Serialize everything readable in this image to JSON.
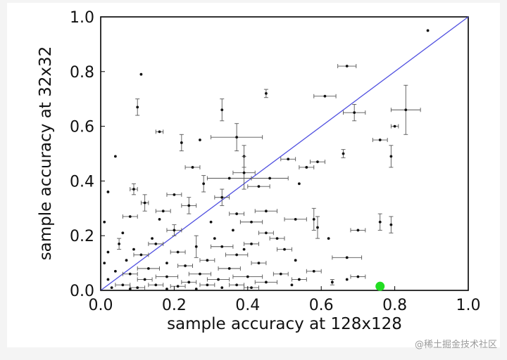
{
  "chart_data": {
    "type": "scatter",
    "xlabel": "sample accuracy at 128x128",
    "ylabel": "sample accuracy at 32x32",
    "xlim": [
      0.0,
      1.0
    ],
    "ylim": [
      0.0,
      1.0
    ],
    "xticks": [
      "0.0",
      "0.2",
      "0.4",
      "0.6",
      "0.8",
      "1.0"
    ],
    "yticks": [
      "0.0",
      "0.2",
      "0.4",
      "0.6",
      "0.8",
      "1.0"
    ],
    "grid": false,
    "reference_line": {
      "from": [
        0,
        0
      ],
      "to": [
        1,
        1
      ],
      "color": "#5050e0"
    },
    "highlight": {
      "x": 0.76,
      "y": 0.015,
      "color": "#22dd22"
    },
    "points": [
      {
        "x": 0.89,
        "y": 0.95
      },
      {
        "x": 0.67,
        "y": 0.82,
        "ex": 0.025
      },
      {
        "x": 0.11,
        "y": 0.79
      },
      {
        "x": 0.45,
        "y": 0.72,
        "ey": 0.015
      },
      {
        "x": 0.61,
        "y": 0.71,
        "ex": 0.03
      },
      {
        "x": 0.1,
        "y": 0.67,
        "ey": 0.03
      },
      {
        "x": 0.83,
        "y": 0.66,
        "ex": 0.04,
        "ey": 0.09
      },
      {
        "x": 0.33,
        "y": 0.66,
        "ey": 0.04
      },
      {
        "x": 0.69,
        "y": 0.65,
        "ex": 0.03,
        "ey": 0.03
      },
      {
        "x": 0.8,
        "y": 0.6,
        "ex": 0.01
      },
      {
        "x": 0.16,
        "y": 0.58,
        "ex": 0.01
      },
      {
        "x": 0.37,
        "y": 0.56,
        "ex": 0.07,
        "ey": 0.05
      },
      {
        "x": 0.76,
        "y": 0.55,
        "ex": 0.02
      },
      {
        "x": 0.27,
        "y": 0.55
      },
      {
        "x": 0.22,
        "y": 0.54,
        "ey": 0.03
      },
      {
        "x": 0.66,
        "y": 0.5,
        "ey": 0.015
      },
      {
        "x": 0.39,
        "y": 0.49,
        "ey": 0.04
      },
      {
        "x": 0.79,
        "y": 0.49,
        "ey": 0.04
      },
      {
        "x": 0.51,
        "y": 0.48,
        "ex": 0.02
      },
      {
        "x": 0.04,
        "y": 0.49
      },
      {
        "x": 0.59,
        "y": 0.47,
        "ex": 0.02
      },
      {
        "x": 0.25,
        "y": 0.45,
        "ex": 0.02
      },
      {
        "x": 0.56,
        "y": 0.45,
        "ex": 0.02
      },
      {
        "x": 0.39,
        "y": 0.43,
        "ex": 0.03,
        "ey": 0.06
      },
      {
        "x": 0.35,
        "y": 0.41,
        "ex": 0.06
      },
      {
        "x": 0.46,
        "y": 0.41,
        "ex": 0.05
      },
      {
        "x": 0.28,
        "y": 0.39,
        "ey": 0.03
      },
      {
        "x": 0.43,
        "y": 0.38,
        "ex": 0.03
      },
      {
        "x": 0.54,
        "y": 0.39
      },
      {
        "x": 0.09,
        "y": 0.37,
        "ex": 0.01,
        "ey": 0.02
      },
      {
        "x": 0.02,
        "y": 0.36
      },
      {
        "x": 0.2,
        "y": 0.35,
        "ex": 0.02
      },
      {
        "x": 0.33,
        "y": 0.34,
        "ex": 0.02,
        "ey": 0.03
      },
      {
        "x": 0.12,
        "y": 0.32,
        "ex": 0.01,
        "ey": 0.03
      },
      {
        "x": 0.24,
        "y": 0.31,
        "ex": 0.02,
        "ey": 0.03
      },
      {
        "x": 0.45,
        "y": 0.29,
        "ex": 0.03
      },
      {
        "x": 0.37,
        "y": 0.28,
        "ex": 0.02
      },
      {
        "x": 0.17,
        "y": 0.29,
        "ex": 0.02
      },
      {
        "x": 0.08,
        "y": 0.27,
        "ex": 0.02
      },
      {
        "x": 0.76,
        "y": 0.25,
        "ey": 0.03
      },
      {
        "x": 0.79,
        "y": 0.24,
        "ey": 0.03
      },
      {
        "x": 0.58,
        "y": 0.26,
        "ey": 0.04
      },
      {
        "x": 0.53,
        "y": 0.26,
        "ex": 0.03
      },
      {
        "x": 0.41,
        "y": 0.25,
        "ex": 0.03
      },
      {
        "x": 0.3,
        "y": 0.25
      },
      {
        "x": 0.01,
        "y": 0.25
      },
      {
        "x": 0.7,
        "y": 0.22,
        "ex": 0.02
      },
      {
        "x": 0.59,
        "y": 0.23,
        "ey": 0.04
      },
      {
        "x": 0.45,
        "y": 0.21,
        "ex": 0.02
      },
      {
        "x": 0.36,
        "y": 0.22
      },
      {
        "x": 0.2,
        "y": 0.22,
        "ex": 0.02,
        "ey": 0.02
      },
      {
        "x": 0.48,
        "y": 0.19,
        "ex": 0.02
      },
      {
        "x": 0.62,
        "y": 0.19
      },
      {
        "x": 0.41,
        "y": 0.17,
        "ex": 0.02
      },
      {
        "x": 0.33,
        "y": 0.16,
        "ex": 0.03
      },
      {
        "x": 0.15,
        "y": 0.17,
        "ex": 0.02
      },
      {
        "x": 0.26,
        "y": 0.16,
        "ey": 0.04
      },
      {
        "x": 0.05,
        "y": 0.17,
        "ey": 0.02
      },
      {
        "x": 0.5,
        "y": 0.15,
        "ex": 0.02
      },
      {
        "x": 0.21,
        "y": 0.14,
        "ex": 0.02
      },
      {
        "x": 0.11,
        "y": 0.13,
        "ex": 0.02
      },
      {
        "x": 0.37,
        "y": 0.13,
        "ex": 0.03
      },
      {
        "x": 0.67,
        "y": 0.12,
        "ex": 0.04
      },
      {
        "x": 0.53,
        "y": 0.11
      },
      {
        "x": 0.29,
        "y": 0.11,
        "ex": 0.02
      },
      {
        "x": 0.07,
        "y": 0.11
      },
      {
        "x": 0.43,
        "y": 0.1,
        "ex": 0.02
      },
      {
        "x": 0.18,
        "y": 0.1
      },
      {
        "x": 0.23,
        "y": 0.09,
        "ex": 0.02
      },
      {
        "x": 0.35,
        "y": 0.08,
        "ex": 0.03
      },
      {
        "x": 0.13,
        "y": 0.08,
        "ex": 0.03
      },
      {
        "x": 0.58,
        "y": 0.07,
        "ex": 0.02
      },
      {
        "x": 0.04,
        "y": 0.07
      },
      {
        "x": 0.49,
        "y": 0.06,
        "ex": 0.02
      },
      {
        "x": 0.27,
        "y": 0.06,
        "ex": 0.03
      },
      {
        "x": 0.08,
        "y": 0.06,
        "ex": 0.02
      },
      {
        "x": 0.4,
        "y": 0.05,
        "ex": 0.04
      },
      {
        "x": 0.18,
        "y": 0.05,
        "ex": 0.03
      },
      {
        "x": 0.7,
        "y": 0.05,
        "ex": 0.02
      },
      {
        "x": 0.67,
        "y": 0.04
      },
      {
        "x": 0.54,
        "y": 0.04,
        "ex": 0.02
      },
      {
        "x": 0.32,
        "y": 0.04,
        "ex": 0.03
      },
      {
        "x": 0.12,
        "y": 0.04,
        "ex": 0.02
      },
      {
        "x": 0.63,
        "y": 0.03,
        "ey": 0.01
      },
      {
        "x": 0.02,
        "y": 0.04
      },
      {
        "x": 0.45,
        "y": 0.03,
        "ex": 0.03
      },
      {
        "x": 0.24,
        "y": 0.03,
        "ex": 0.02
      },
      {
        "x": 0.37,
        "y": 0.02,
        "ex": 0.02
      },
      {
        "x": 0.06,
        "y": 0.02,
        "ex": 0.02
      },
      {
        "x": 0.15,
        "y": 0.02,
        "ex": 0.02
      },
      {
        "x": 0.29,
        "y": 0.02,
        "ex": 0.02
      },
      {
        "x": 0.52,
        "y": 0.02
      },
      {
        "x": 0.21,
        "y": 0.015,
        "ex": 0.02
      },
      {
        "x": 0.03,
        "y": 0.01
      },
      {
        "x": 0.1,
        "y": 0.01,
        "ex": 0.02
      },
      {
        "x": 0.41,
        "y": 0.01,
        "ex": 0.02
      },
      {
        "x": 0.33,
        "y": 0.01
      },
      {
        "x": 0.26,
        "y": 0.005
      },
      {
        "x": 0.18,
        "y": 0.005
      },
      {
        "x": 0.08,
        "y": 0.005
      },
      {
        "x": 0.01,
        "y": 0.1
      },
      {
        "x": 0.02,
        "y": 0.14
      },
      {
        "x": 0.14,
        "y": 0.19
      },
      {
        "x": 0.06,
        "y": 0.21
      },
      {
        "x": 0.09,
        "y": 0.15
      },
      {
        "x": 0.16,
        "y": 0.26
      },
      {
        "x": 0.31,
        "y": 0.19
      },
      {
        "x": 0.39,
        "y": 0.15
      }
    ]
  },
  "watermark": "@稀土掘金技术社区"
}
